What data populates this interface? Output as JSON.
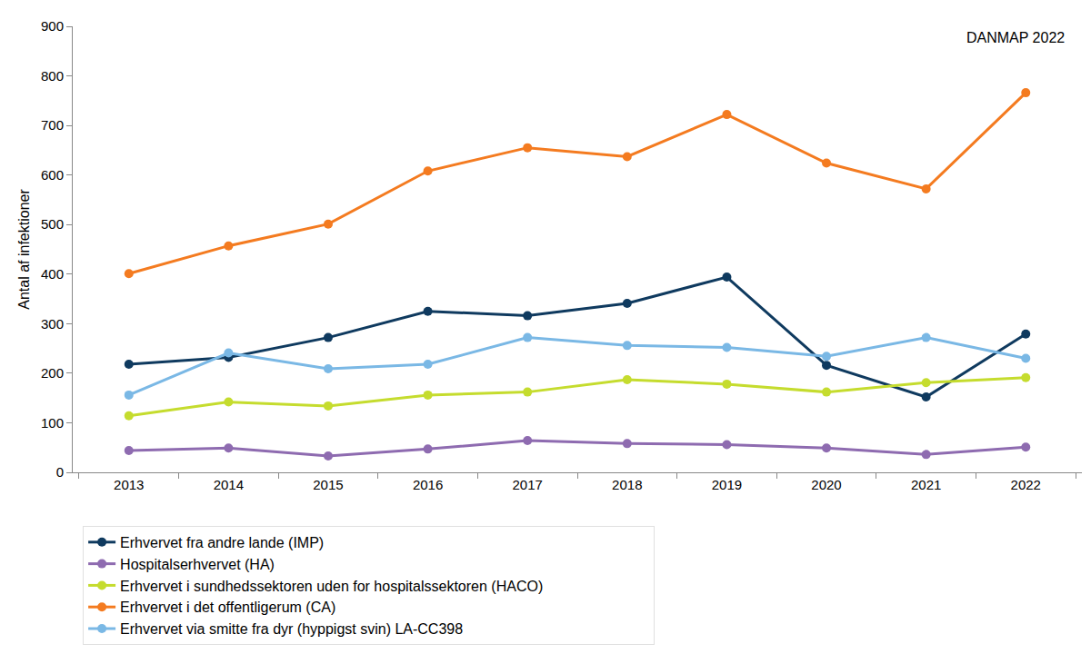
{
  "chart_data": {
    "type": "line",
    "annotations": [
      "DANMAP 2022"
    ],
    "y_label": "Antal af infektioner",
    "categories": [
      "2013",
      "2014",
      "2015",
      "2016",
      "2017",
      "2018",
      "2019",
      "2020",
      "2021",
      "2022"
    ],
    "series": [
      {
        "name": "Erhvervet fra andre lande (IMP)",
        "color": "#0f3a5f",
        "marker": "circle",
        "values": [
          218,
          232,
          272,
          325,
          316,
          341,
          394,
          216,
          152,
          279
        ]
      },
      {
        "name": "Hospitalserhvervet (HA)",
        "color": "#8e6bb0",
        "marker": "circle",
        "values": [
          44,
          49,
          33,
          47,
          64,
          58,
          56,
          49,
          36,
          51
        ]
      },
      {
        "name": "Erhvervet i sundhedssektoren uden for hospitalssektoren (HACO)",
        "color": "#c5dc2e",
        "marker": "circle",
        "values": [
          114,
          142,
          134,
          156,
          162,
          187,
          178,
          162,
          181,
          191
        ]
      },
      {
        "name": "Erhvervet i det offentligerum (CA)",
        "color": "#f47b20",
        "marker": "circle",
        "values": [
          401,
          457,
          501,
          608,
          655,
          637,
          722,
          624,
          572,
          766
        ]
      },
      {
        "name": "Erhvervet via smitte fra dyr (hyppigst svin) LA-CC398",
        "color": "#7ab8e5",
        "marker": "circle",
        "values": [
          156,
          241,
          209,
          218,
          272,
          256,
          252,
          234,
          272,
          230
        ]
      }
    ],
    "ylim": [
      0,
      900
    ],
    "yticks": [
      0,
      100,
      200,
      300,
      400,
      500,
      600,
      700,
      800,
      900
    ],
    "grid": false,
    "legend": "bottom"
  }
}
